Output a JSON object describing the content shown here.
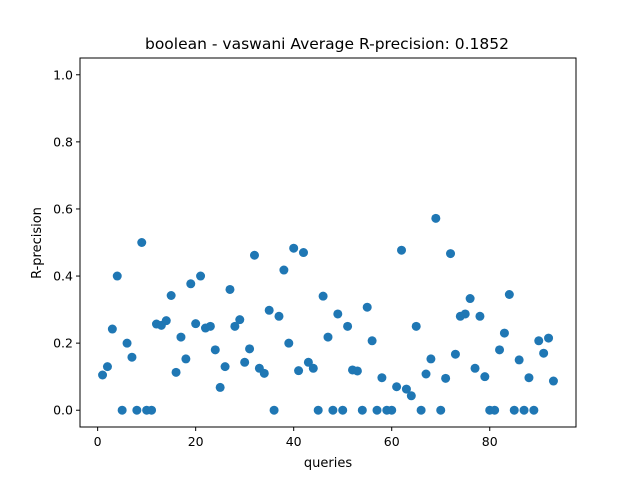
{
  "chart_data": {
    "type": "scatter",
    "title": "boolean - vaswani  Average R-precision: 0.1852",
    "xlabel": "queries",
    "ylabel": "R-precision",
    "xlim": [
      -3.6,
      97.6
    ],
    "ylim": [
      -0.05,
      1.05
    ],
    "xticks": [
      0,
      20,
      40,
      60,
      80
    ],
    "xtick_labels": [
      "0",
      "20",
      "40",
      "60",
      "80"
    ],
    "yticks": [
      0.0,
      0.2,
      0.4,
      0.6,
      0.8,
      1.0
    ],
    "ytick_labels": [
      "0.0",
      "0.2",
      "0.4",
      "0.6",
      "0.8",
      "1.0"
    ],
    "grid": false,
    "color": "#1f77b4",
    "series": [
      {
        "x": [
          1,
          2,
          3,
          4,
          5,
          6,
          7,
          8,
          9,
          10,
          11,
          12,
          13,
          14,
          15,
          16,
          17,
          18,
          19,
          20,
          21,
          22,
          23,
          24,
          25,
          26,
          27,
          28,
          29,
          30,
          31,
          32,
          33,
          34,
          35,
          36,
          37,
          38,
          39,
          40,
          41,
          42,
          43,
          44,
          45,
          46,
          47,
          48,
          49,
          50,
          51,
          52,
          53,
          54,
          55,
          56,
          57,
          58,
          59,
          60,
          61,
          62,
          63,
          64,
          65,
          66,
          67,
          68,
          69,
          70,
          71,
          72,
          73,
          74,
          75,
          76,
          77,
          78,
          79,
          80,
          81,
          82,
          83,
          84,
          85,
          86,
          87,
          88,
          89,
          90,
          91,
          92,
          93
        ],
        "y": [
          0.105,
          0.13,
          0.242,
          0.4,
          0.0,
          0.2,
          0.158,
          0.0,
          0.5,
          0.0,
          0.0,
          0.257,
          0.253,
          0.267,
          0.342,
          0.113,
          0.218,
          0.153,
          0.377,
          0.258,
          0.4,
          0.245,
          0.25,
          0.18,
          0.068,
          0.13,
          0.36,
          0.25,
          0.27,
          0.143,
          0.183,
          0.462,
          0.125,
          0.11,
          0.298,
          0.0,
          0.28,
          0.418,
          0.2,
          0.483,
          0.118,
          0.47,
          0.143,
          0.125,
          0.0,
          0.34,
          0.218,
          0.0,
          0.287,
          0.0,
          0.25,
          0.12,
          0.117,
          0.0,
          0.307,
          0.207,
          0.0,
          0.097,
          0.0,
          0.0,
          0.07,
          0.477,
          0.063,
          0.043,
          0.25,
          0.0,
          0.108,
          0.153,
          0.572,
          0.0,
          0.095,
          0.467,
          0.167,
          0.28,
          0.287,
          0.333,
          0.125,
          0.28,
          0.1,
          0.0,
          0.0,
          0.18,
          0.23,
          0.345,
          0.0,
          0.15,
          0.0,
          0.097,
          0.0,
          0.207,
          0.17,
          0.215,
          0.087
        ]
      }
    ]
  }
}
